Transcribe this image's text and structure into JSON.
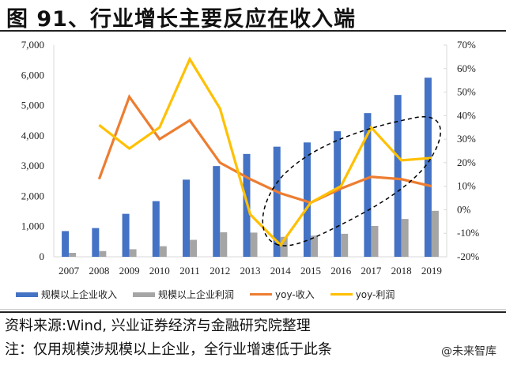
{
  "title": "图 91、行业增长主要反应在收入端",
  "source": "资料来源:Wind, 兴业证券经济与金融研究院整理",
  "note": "注：仅用规模涉规模以上企业，全行业增速低于此条",
  "watermark": "@未来智库",
  "colors": {
    "revenue_bar": "#4472C4",
    "profit_bar": "#A5A5A5",
    "yoy_revenue": "#ED7D31",
    "yoy_profit": "#FFC000",
    "ellipse": "#000000"
  },
  "legend": [
    {
      "label": "规模以上企业收入",
      "type": "bar",
      "color": "#4472C4"
    },
    {
      "label": "规模以上企业利润",
      "type": "bar",
      "color": "#A5A5A5"
    },
    {
      "label": "yoy-收入",
      "type": "line",
      "color": "#ED7D31"
    },
    {
      "label": "yoy-利润",
      "type": "line",
      "color": "#FFC000"
    }
  ],
  "chart_data": {
    "type": "bar",
    "title": "图 91、行业增长主要反应在收入端",
    "xlabel": "",
    "ylabel": "",
    "categories": [
      "2007",
      "2008",
      "2009",
      "2010",
      "2011",
      "2012",
      "2013",
      "2014",
      "2015",
      "2016",
      "2017",
      "2018",
      "2019"
    ],
    "series": [
      {
        "name": "规模以上企业收入",
        "type": "bar",
        "axis": "left",
        "values": [
          850,
          950,
          1420,
          1840,
          2550,
          3000,
          3400,
          3640,
          3780,
          4150,
          4750,
          5350,
          5920
        ]
      },
      {
        "name": "规模以上企业利润",
        "type": "bar",
        "axis": "left",
        "values": [
          130,
          190,
          250,
          350,
          560,
          810,
          800,
          660,
          700,
          760,
          1020,
          1250,
          1520
        ]
      },
      {
        "name": "yoy-收入",
        "type": "line",
        "axis": "right",
        "values": [
          null,
          0.13,
          0.48,
          0.3,
          0.38,
          0.2,
          0.13,
          0.07,
          0.03,
          0.09,
          0.14,
          0.13,
          0.1
        ]
      },
      {
        "name": "yoy-利润",
        "type": "line",
        "axis": "right",
        "values": [
          null,
          0.36,
          0.26,
          0.35,
          0.64,
          0.43,
          -0.02,
          -0.15,
          0.03,
          0.1,
          0.35,
          0.21,
          0.22
        ]
      }
    ],
    "ylim": [
      0,
      7000
    ],
    "yticks": [
      "0",
      "1,000",
      "2,000",
      "3,000",
      "4,000",
      "5,000",
      "6,000",
      "7,000"
    ],
    "y2lim": [
      -0.2,
      0.7
    ],
    "y2ticks": [
      "-20%",
      "-10%",
      "0%",
      "10%",
      "20%",
      "30%",
      "40%",
      "50%",
      "60%",
      "70%"
    ],
    "grid": false,
    "legend_position": "bottom",
    "annotations": [
      {
        "type": "dashed-ellipse",
        "covers": "2014-2019"
      }
    ]
  }
}
